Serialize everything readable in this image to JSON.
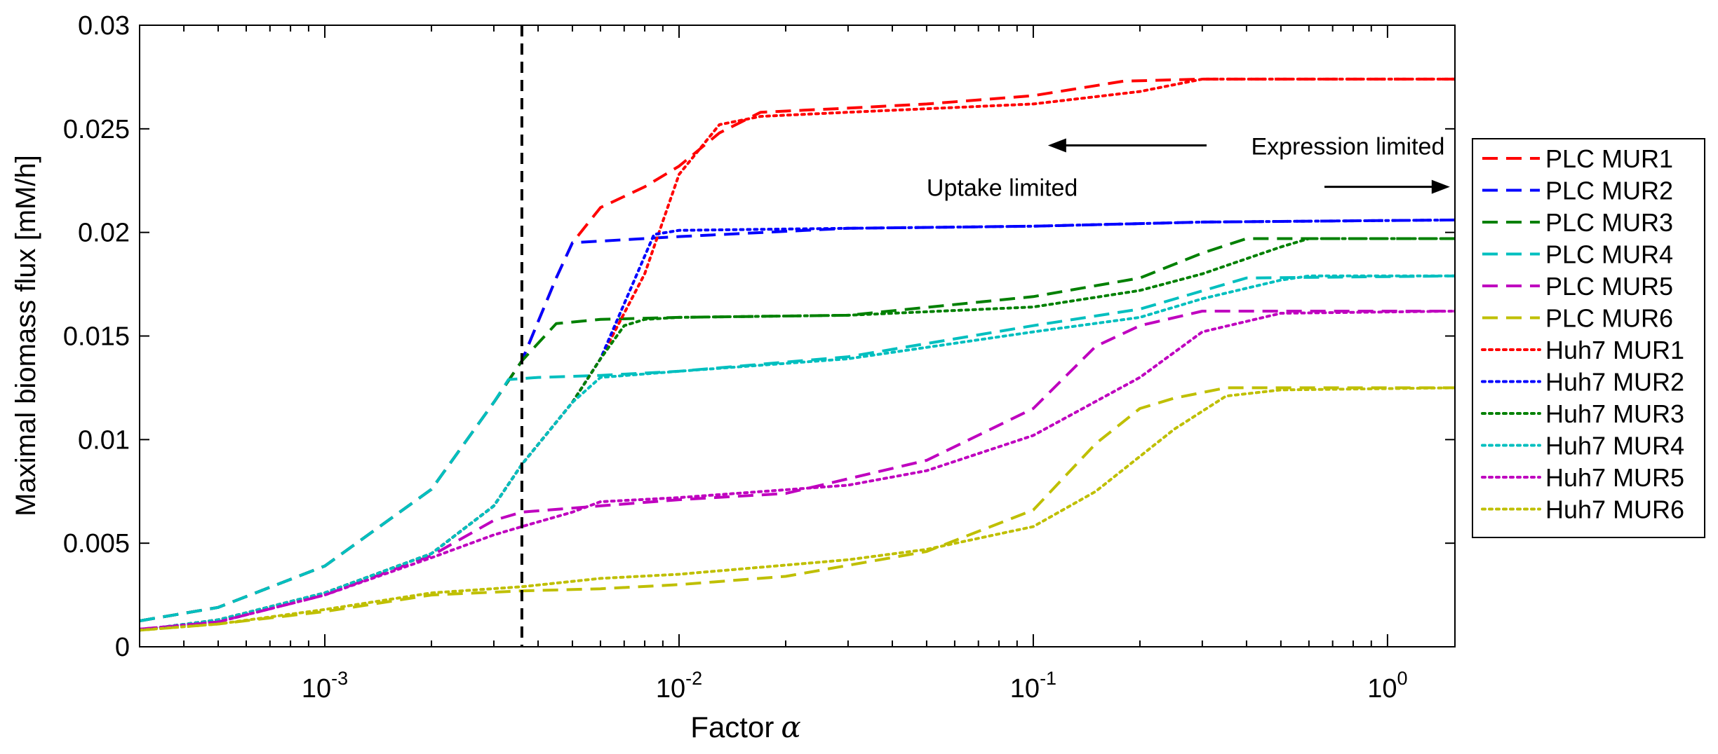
{
  "chart_data": {
    "type": "line",
    "title": "",
    "xlabel": "Factor",
    "xlabel_symbol": "α",
    "ylabel": "Maximal biomass flux [mM/h]",
    "x_scale": "log",
    "xlim": [
      0.0003,
      1.55
    ],
    "ylim": [
      0,
      0.03
    ],
    "grid": false,
    "legend_position": "right-outside",
    "x_ticks": [
      {
        "value": 0.001,
        "base": "10",
        "exp": "-3"
      },
      {
        "value": 0.01,
        "base": "10",
        "exp": "-2"
      },
      {
        "value": 0.1,
        "base": "10",
        "exp": "-1"
      },
      {
        "value": 1,
        "base": "10",
        "exp": "0"
      }
    ],
    "y_ticks": [
      {
        "value": 0,
        "label": "0"
      },
      {
        "value": 0.005,
        "label": "0.005"
      },
      {
        "value": 0.01,
        "label": "0.01"
      },
      {
        "value": 0.015,
        "label": "0.015"
      },
      {
        "value": 0.02,
        "label": "0.02"
      },
      {
        "value": 0.025,
        "label": "0.025"
      },
      {
        "value": 0.03,
        "label": "0.03"
      }
    ],
    "vertical_line": {
      "x": 0.0036,
      "style": "dashed",
      "color": "#000000"
    },
    "annotations": [
      {
        "text": "Expression limited",
        "arrow_direction": "left",
        "x_text_end": 1.45,
        "x_arrow_end": 0.11,
        "y": 0.0242
      },
      {
        "text": "Uptake limited",
        "arrow_direction": "right",
        "x_text_start": 0.05,
        "x_arrow_end": 1.5,
        "y": 0.0222
      }
    ],
    "series": [
      {
        "name": "PLC MUR1",
        "color": "#ff0000",
        "dash": "dashed",
        "points": [
          [
            0.0003,
            0.00125
          ],
          [
            0.0005,
            0.0019
          ],
          [
            0.001,
            0.0039
          ],
          [
            0.002,
            0.0076
          ],
          [
            0.003,
            0.0118
          ],
          [
            0.0036,
            0.0138
          ],
          [
            0.0045,
            0.0178
          ],
          [
            0.005,
            0.0195
          ],
          [
            0.006,
            0.0212
          ],
          [
            0.008,
            0.0222
          ],
          [
            0.01,
            0.0232
          ],
          [
            0.013,
            0.0248
          ],
          [
            0.017,
            0.0258
          ],
          [
            0.03,
            0.026
          ],
          [
            0.05,
            0.0262
          ],
          [
            0.1,
            0.0266
          ],
          [
            0.18,
            0.0273
          ],
          [
            0.3,
            0.0274
          ],
          [
            1.55,
            0.0274
          ]
        ]
      },
      {
        "name": "PLC MUR2",
        "color": "#0000ff",
        "dash": "dashed",
        "points": [
          [
            0.0003,
            0.00125
          ],
          [
            0.0005,
            0.0019
          ],
          [
            0.001,
            0.0039
          ],
          [
            0.002,
            0.0076
          ],
          [
            0.003,
            0.0118
          ],
          [
            0.0036,
            0.0138
          ],
          [
            0.0045,
            0.0178
          ],
          [
            0.005,
            0.0195
          ],
          [
            0.01,
            0.0198
          ],
          [
            0.03,
            0.0202
          ],
          [
            0.1,
            0.0203
          ],
          [
            0.3,
            0.0205
          ],
          [
            1.55,
            0.0206
          ]
        ]
      },
      {
        "name": "PLC MUR3",
        "color": "#008000",
        "dash": "dashed",
        "points": [
          [
            0.0003,
            0.00125
          ],
          [
            0.0005,
            0.0019
          ],
          [
            0.001,
            0.0039
          ],
          [
            0.002,
            0.0076
          ],
          [
            0.003,
            0.0118
          ],
          [
            0.0036,
            0.0138
          ],
          [
            0.0045,
            0.0156
          ],
          [
            0.006,
            0.0158
          ],
          [
            0.01,
            0.0159
          ],
          [
            0.03,
            0.016
          ],
          [
            0.1,
            0.0169
          ],
          [
            0.2,
            0.0178
          ],
          [
            0.3,
            0.019
          ],
          [
            0.4,
            0.0197
          ],
          [
            1.55,
            0.0197
          ]
        ]
      },
      {
        "name": "PLC MUR4",
        "color": "#00bfbf",
        "dash": "dashed",
        "points": [
          [
            0.0003,
            0.00125
          ],
          [
            0.0005,
            0.0019
          ],
          [
            0.001,
            0.0039
          ],
          [
            0.002,
            0.0076
          ],
          [
            0.003,
            0.0118
          ],
          [
            0.0033,
            0.0129
          ],
          [
            0.004,
            0.013
          ],
          [
            0.006,
            0.0131
          ],
          [
            0.01,
            0.0133
          ],
          [
            0.03,
            0.014
          ],
          [
            0.1,
            0.0155
          ],
          [
            0.2,
            0.0163
          ],
          [
            0.4,
            0.0178
          ],
          [
            1.55,
            0.0179
          ]
        ]
      },
      {
        "name": "PLC MUR5",
        "color": "#bf00bf",
        "dash": "dashed",
        "points": [
          [
            0.0003,
            0.00085
          ],
          [
            0.0005,
            0.0012
          ],
          [
            0.001,
            0.0025
          ],
          [
            0.002,
            0.0044
          ],
          [
            0.003,
            0.0061
          ],
          [
            0.0036,
            0.0065
          ],
          [
            0.006,
            0.0068
          ],
          [
            0.01,
            0.0071
          ],
          [
            0.02,
            0.0074
          ],
          [
            0.05,
            0.009
          ],
          [
            0.1,
            0.0115
          ],
          [
            0.15,
            0.0145
          ],
          [
            0.2,
            0.0155
          ],
          [
            0.3,
            0.0162
          ],
          [
            1.55,
            0.0162
          ]
        ]
      },
      {
        "name": "PLC MUR6",
        "color": "#bfbf00",
        "dash": "dashed",
        "points": [
          [
            0.0003,
            0.0008
          ],
          [
            0.0005,
            0.0011
          ],
          [
            0.001,
            0.0017
          ],
          [
            0.002,
            0.0025
          ],
          [
            0.0036,
            0.0027
          ],
          [
            0.006,
            0.0028
          ],
          [
            0.01,
            0.003
          ],
          [
            0.02,
            0.0034
          ],
          [
            0.05,
            0.0046
          ],
          [
            0.1,
            0.0066
          ],
          [
            0.15,
            0.0098
          ],
          [
            0.2,
            0.0115
          ],
          [
            0.25,
            0.012
          ],
          [
            0.35,
            0.0125
          ],
          [
            1.55,
            0.0125
          ]
        ]
      },
      {
        "name": "Huh7 MUR1",
        "color": "#ff0000",
        "dash": "dotted",
        "points": [
          [
            0.0003,
            0.0008
          ],
          [
            0.0005,
            0.0013
          ],
          [
            0.001,
            0.0026
          ],
          [
            0.002,
            0.0045
          ],
          [
            0.003,
            0.0068
          ],
          [
            0.0036,
            0.0088
          ],
          [
            0.005,
            0.0118
          ],
          [
            0.006,
            0.0139
          ],
          [
            0.008,
            0.018
          ],
          [
            0.01,
            0.0228
          ],
          [
            0.013,
            0.0252
          ],
          [
            0.017,
            0.0256
          ],
          [
            0.03,
            0.0258
          ],
          [
            0.1,
            0.0262
          ],
          [
            0.2,
            0.0268
          ],
          [
            0.3,
            0.0274
          ],
          [
            1.55,
            0.0274
          ]
        ]
      },
      {
        "name": "Huh7 MUR2",
        "color": "#0000ff",
        "dash": "dotted",
        "points": [
          [
            0.0003,
            0.0008
          ],
          [
            0.0005,
            0.0013
          ],
          [
            0.001,
            0.0026
          ],
          [
            0.002,
            0.0045
          ],
          [
            0.003,
            0.0068
          ],
          [
            0.0036,
            0.0088
          ],
          [
            0.005,
            0.0118
          ],
          [
            0.006,
            0.0139
          ],
          [
            0.0085,
            0.0199
          ],
          [
            0.01,
            0.0201
          ],
          [
            0.03,
            0.0202
          ],
          [
            0.1,
            0.0203
          ],
          [
            0.3,
            0.0205
          ],
          [
            1.55,
            0.0206
          ]
        ]
      },
      {
        "name": "Huh7 MUR3",
        "color": "#008000",
        "dash": "dotted",
        "points": [
          [
            0.0003,
            0.0008
          ],
          [
            0.0005,
            0.0013
          ],
          [
            0.001,
            0.0026
          ],
          [
            0.002,
            0.0045
          ],
          [
            0.003,
            0.0068
          ],
          [
            0.0036,
            0.0088
          ],
          [
            0.005,
            0.0118
          ],
          [
            0.006,
            0.0139
          ],
          [
            0.007,
            0.0155
          ],
          [
            0.008,
            0.0158
          ],
          [
            0.01,
            0.0159
          ],
          [
            0.03,
            0.016
          ],
          [
            0.1,
            0.0164
          ],
          [
            0.2,
            0.0172
          ],
          [
            0.3,
            0.018
          ],
          [
            0.5,
            0.0193
          ],
          [
            0.6,
            0.0197
          ],
          [
            1.55,
            0.0197
          ]
        ]
      },
      {
        "name": "Huh7 MUR4",
        "color": "#00bfbf",
        "dash": "dotted",
        "points": [
          [
            0.0003,
            0.0008
          ],
          [
            0.0005,
            0.0013
          ],
          [
            0.001,
            0.0026
          ],
          [
            0.002,
            0.0045
          ],
          [
            0.003,
            0.0068
          ],
          [
            0.0036,
            0.0088
          ],
          [
            0.005,
            0.0118
          ],
          [
            0.006,
            0.013
          ],
          [
            0.01,
            0.0133
          ],
          [
            0.03,
            0.0139
          ],
          [
            0.1,
            0.0152
          ],
          [
            0.2,
            0.0159
          ],
          [
            0.3,
            0.0168
          ],
          [
            0.5,
            0.0177
          ],
          [
            0.6,
            0.0179
          ],
          [
            1.55,
            0.0179
          ]
        ]
      },
      {
        "name": "Huh7 MUR5",
        "color": "#bf00bf",
        "dash": "dotted",
        "points": [
          [
            0.0003,
            0.00085
          ],
          [
            0.0005,
            0.0012
          ],
          [
            0.001,
            0.0025
          ],
          [
            0.002,
            0.0043
          ],
          [
            0.003,
            0.0054
          ],
          [
            0.0036,
            0.0058
          ],
          [
            0.005,
            0.0065
          ],
          [
            0.006,
            0.007
          ],
          [
            0.01,
            0.0072
          ],
          [
            0.03,
            0.0078
          ],
          [
            0.05,
            0.0085
          ],
          [
            0.1,
            0.0102
          ],
          [
            0.2,
            0.013
          ],
          [
            0.3,
            0.0152
          ],
          [
            0.5,
            0.0161
          ],
          [
            1.55,
            0.0162
          ]
        ]
      },
      {
        "name": "Huh7 MUR6",
        "color": "#bfbf00",
        "dash": "dotted",
        "points": [
          [
            0.0003,
            0.0008
          ],
          [
            0.0005,
            0.0011
          ],
          [
            0.001,
            0.0018
          ],
          [
            0.002,
            0.0026
          ],
          [
            0.0036,
            0.0029
          ],
          [
            0.006,
            0.0033
          ],
          [
            0.01,
            0.0035
          ],
          [
            0.03,
            0.0042
          ],
          [
            0.05,
            0.0047
          ],
          [
            0.1,
            0.0058
          ],
          [
            0.15,
            0.0075
          ],
          [
            0.25,
            0.0105
          ],
          [
            0.35,
            0.0121
          ],
          [
            0.5,
            0.0124
          ],
          [
            1.55,
            0.0125
          ]
        ]
      }
    ]
  }
}
